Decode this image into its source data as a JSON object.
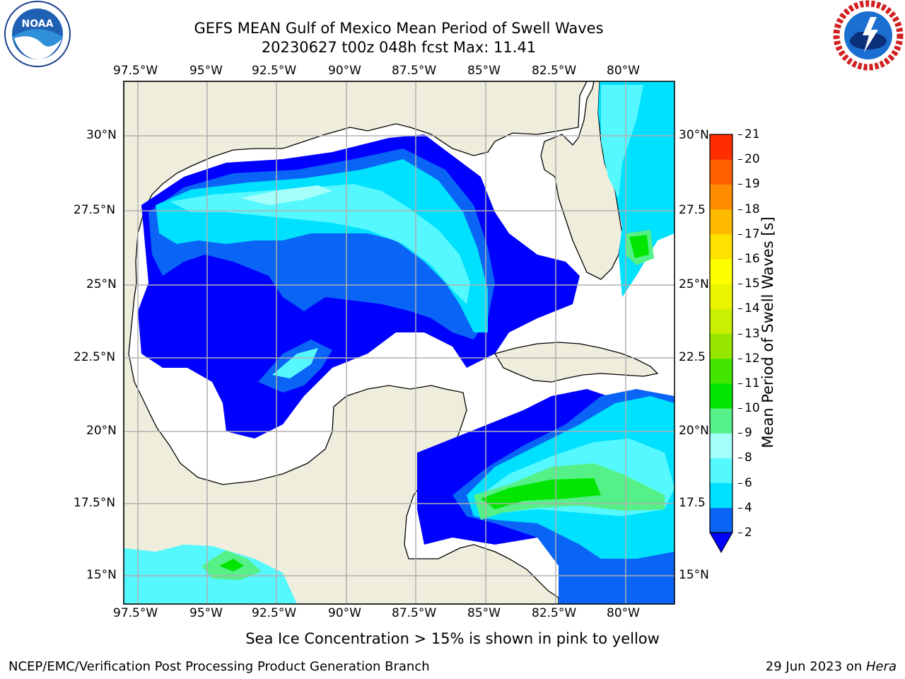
{
  "header": {
    "title_line1": "GEFS MEAN Gulf of Mexico Mean Period of Swell Waves",
    "title_line2": "20230627 t00z 048h fcst   Max: 11.41"
  },
  "logos": {
    "left": {
      "icon": "noaa-logo-icon",
      "text": "NOAA"
    },
    "right": {
      "icon": "national-weather-service-logo-icon"
    }
  },
  "map": {
    "lon_labels": [
      "97.5°W",
      "95°W",
      "92.5°W",
      "90°W",
      "87.5°W",
      "85°W",
      "82.5°W",
      "80°W"
    ],
    "lat_labels_left": [
      "30°N",
      "27.5°N",
      "25°N",
      "22.5°N",
      "20°N",
      "17.5°N",
      "15°N"
    ],
    "lat_labels_right": [
      "30°N",
      "27.5",
      "25°N",
      "22.5",
      "20°N",
      "17.5",
      "15°N"
    ],
    "colors": {
      "land": "#efeedd",
      "ocean_calm": "#ffffff",
      "grid": "#b0b0b0"
    }
  },
  "colorbar": {
    "label": "Mean Period of Swell Waves [s]",
    "ticks": [
      "2",
      "4",
      "6",
      "8",
      "9",
      "10",
      "11",
      "12",
      "13",
      "14",
      "15",
      "16",
      "17",
      "18",
      "19",
      "20",
      "21"
    ],
    "colors": [
      "#0a64f5",
      "#00e0ff",
      "#55f8ff",
      "#a5fffa",
      "#55f087",
      "#00e600",
      "#44e600",
      "#96e600",
      "#c8f000",
      "#ebf500",
      "#ffff00",
      "#ffe100",
      "#ffb900",
      "#ff8c00",
      "#ff5f00",
      "#ff2d00",
      "#ff0000"
    ],
    "under_color": "#0000ff"
  },
  "caption": "Sea Ice Concentration > 15% is shown in pink to yellow",
  "footer": {
    "left": "NCEP/EMC/Verification Post Processing Product Generation Branch",
    "right_date": "29 Jun 2023 on ",
    "right_host": "Hera"
  }
}
